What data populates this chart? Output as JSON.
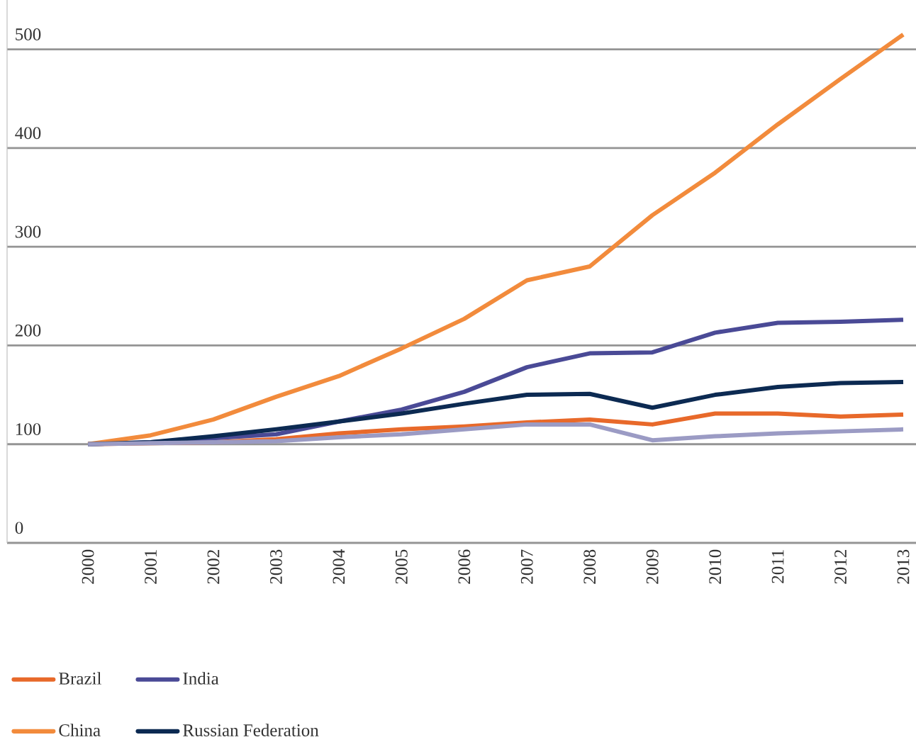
{
  "chart_data": {
    "type": "line",
    "categories": [
      "2000",
      "2001",
      "2002",
      "2003",
      "2004",
      "2005",
      "2006",
      "2007",
      "2008",
      "2009",
      "2010",
      "2011",
      "2012",
      "2013"
    ],
    "series": [
      {
        "name": "Brazil",
        "color": "#e8692a",
        "values": [
          100,
          101,
          102,
          105,
          111,
          115,
          118,
          122,
          125,
          120,
          131,
          131,
          128,
          130
        ]
      },
      {
        "name": "India",
        "color": "#4a4a96",
        "values": [
          100,
          102,
          106,
          110,
          123,
          135,
          153,
          178,
          192,
          193,
          213,
          223,
          224,
          226
        ]
      },
      {
        "name": "China",
        "color": "#f28b3c",
        "values": [
          100,
          109,
          125,
          148,
          169,
          197,
          227,
          266,
          280,
          332,
          375,
          424,
          470,
          515
        ]
      },
      {
        "name": "Russian Federation",
        "color": "#0c2a52",
        "values": [
          100,
          102,
          108,
          115,
          123,
          131,
          141,
          150,
          151,
          137,
          150,
          158,
          162,
          163
        ]
      },
      {
        "color": "#9b9bc4",
        "values": [
          100,
          101,
          102,
          103,
          107,
          110,
          115,
          120,
          120,
          104,
          108,
          111,
          113,
          115
        ]
      }
    ],
    "ylim": [
      0,
      550
    ],
    "yticks": [
      0,
      100,
      200,
      300,
      400,
      500
    ],
    "grid": "y",
    "legend": "bottom",
    "marker": "none",
    "line_style": "solid"
  }
}
